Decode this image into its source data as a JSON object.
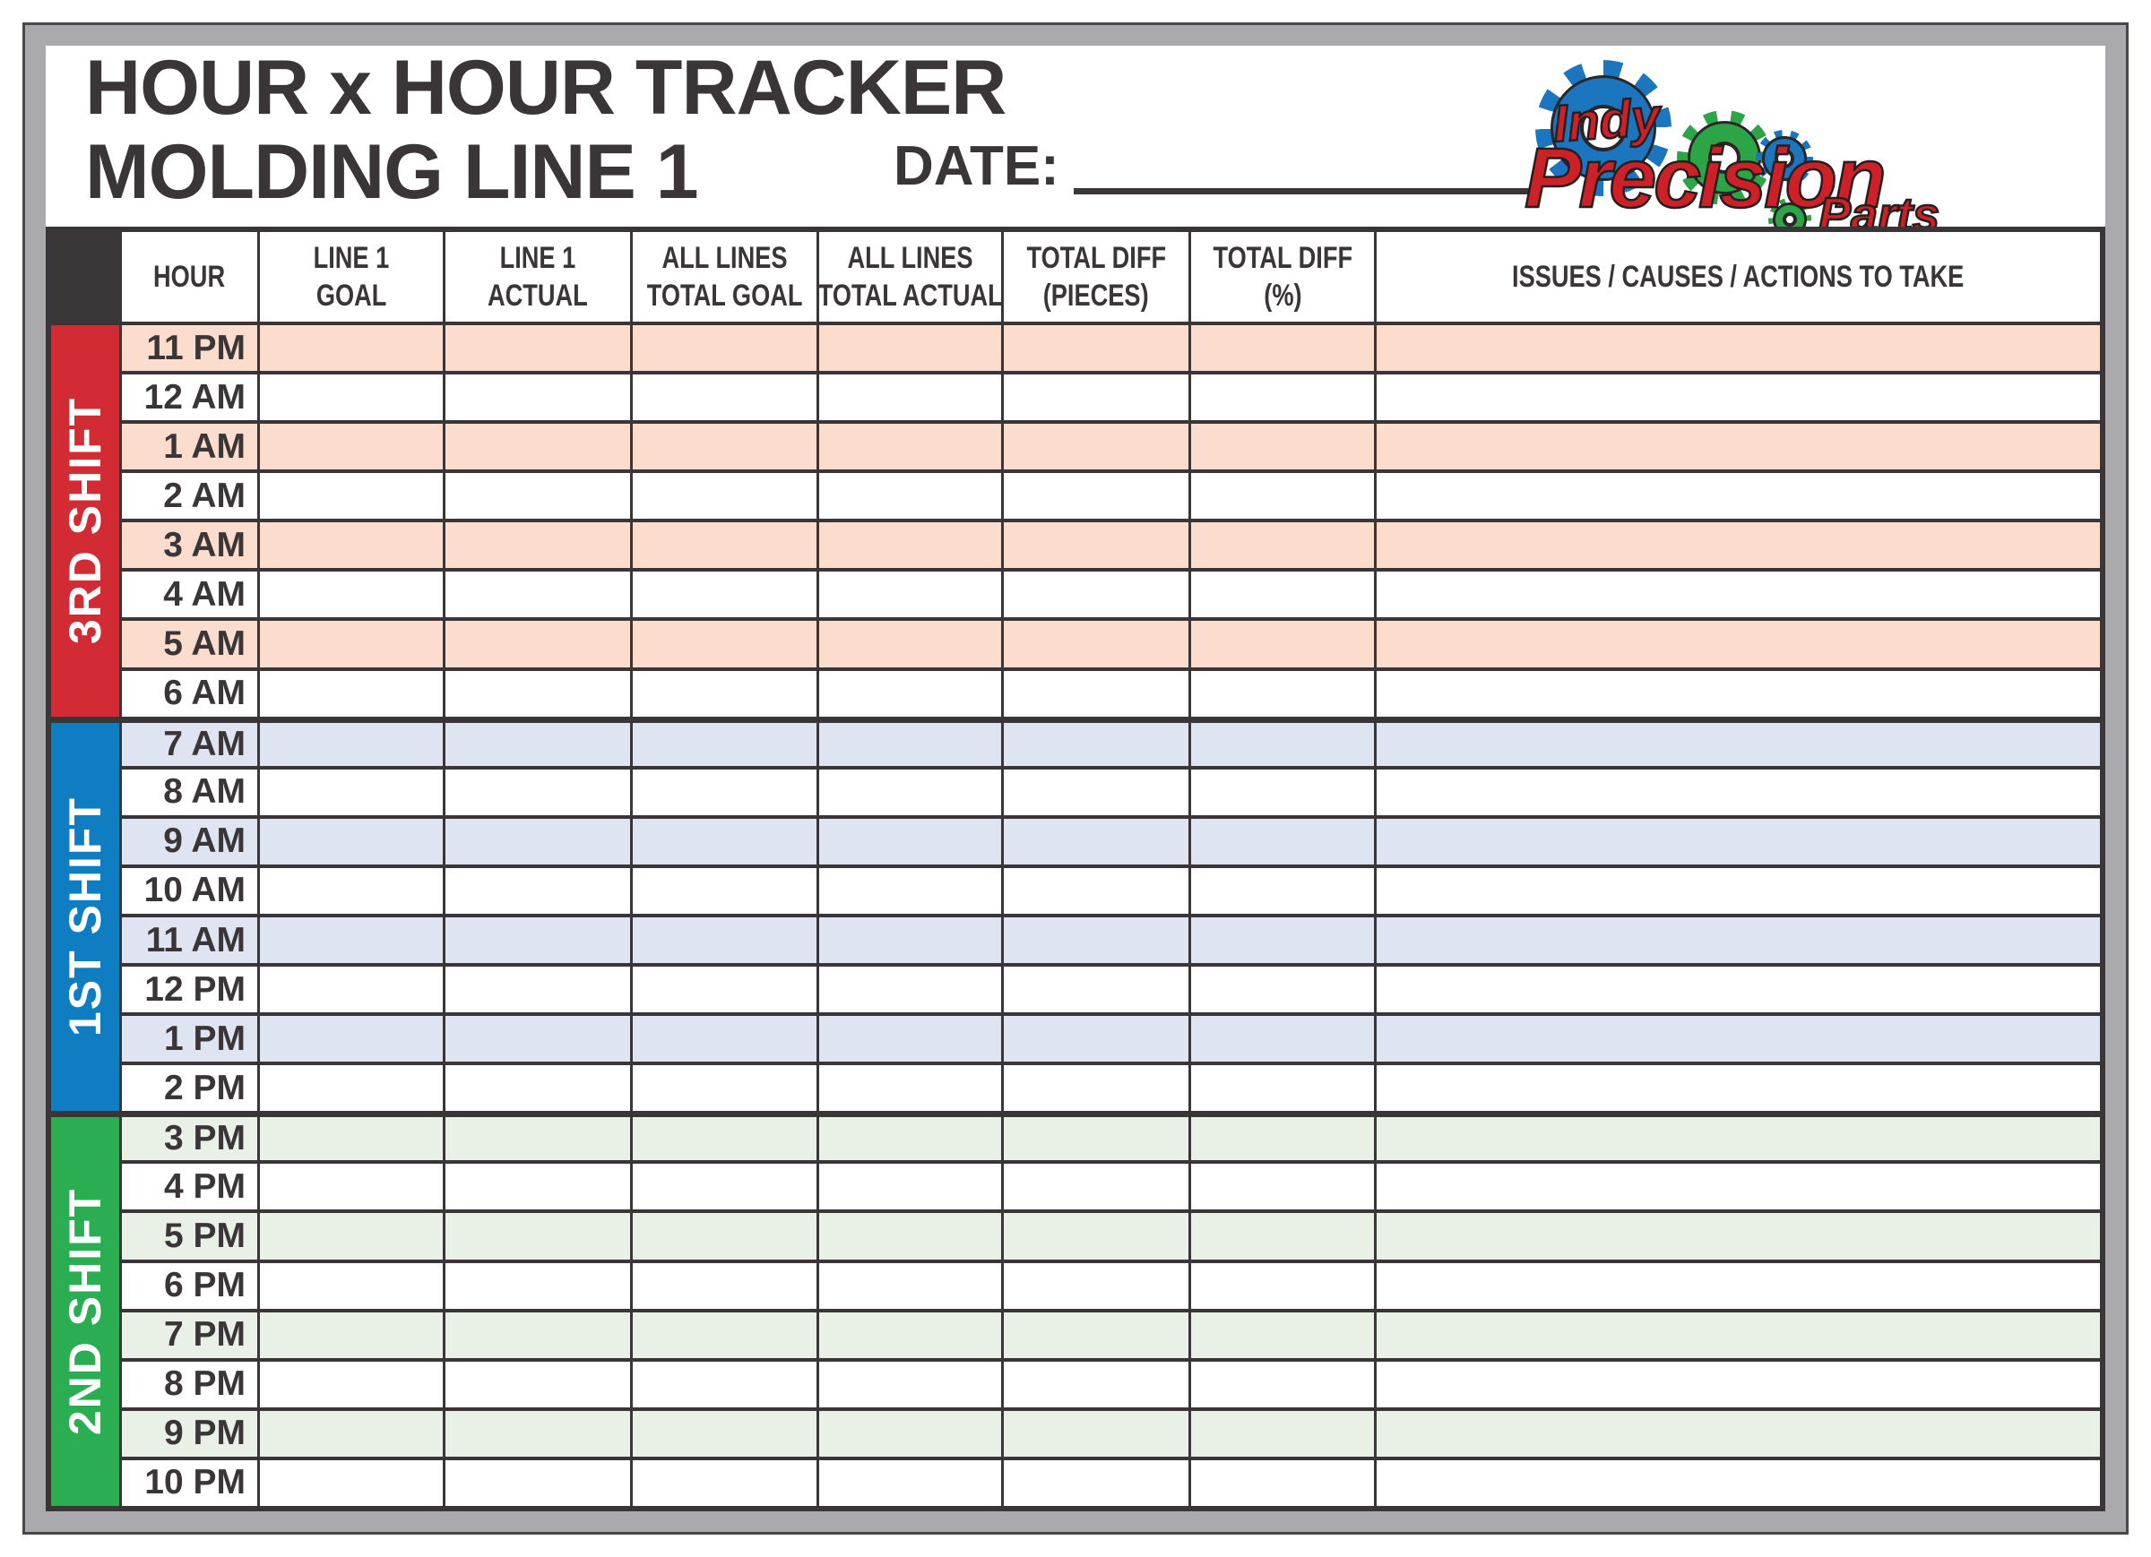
{
  "header": {
    "title_line1": "HOUR x HOUR TRACKER",
    "title_line2": "MOLDING LINE 1",
    "date_label": "DATE:",
    "date_value": ""
  },
  "logo": {
    "word1": "Indy",
    "word2": "Precision",
    "word3": "Parts",
    "red": "#cd2127",
    "blue": "#1b76bf",
    "green": "#2ca547"
  },
  "table": {
    "columns": [
      {
        "key": "hour",
        "line1": "HOUR",
        "line2": ""
      },
      {
        "key": "line1-goal",
        "line1": "LINE 1",
        "line2": "GOAL"
      },
      {
        "key": "line1-actual",
        "line1": "LINE 1",
        "line2": "ACTUAL"
      },
      {
        "key": "all-lines-total-goal",
        "line1": "ALL LINES",
        "line2": "TOTAL GOAL"
      },
      {
        "key": "all-lines-total-actual",
        "line1": "ALL LINES",
        "line2": "TOTAL ACTUAL"
      },
      {
        "key": "total-diff-pieces",
        "line1": "TOTAL DIFF",
        "line2": "(PIECES)"
      },
      {
        "key": "total-diff-pct",
        "line1": "TOTAL DIFF",
        "line2": "(%)"
      },
      {
        "key": "issues",
        "line1": "ISSUES / CAUSES / ACTIONS TO TAKE",
        "line2": ""
      }
    ],
    "shifts": [
      {
        "name": "3RD SHIFT",
        "color": "#d22b33",
        "tint": "#fbdccd",
        "hours": [
          "11 PM",
          "12 AM",
          "1 AM",
          "2 AM",
          "3 AM",
          "4 AM",
          "5 AM",
          "6 AM"
        ]
      },
      {
        "name": "1ST SHIFT",
        "color": "#0f7dc2",
        "tint": "#dee4f1",
        "hours": [
          "7 AM",
          "8 AM",
          "9 AM",
          "10 AM",
          "11 AM",
          "12 PM",
          "1 PM",
          "2 PM"
        ]
      },
      {
        "name": "2ND SHIFT",
        "color": "#2bae52",
        "tint": "#e9f0e5",
        "hours": [
          "3 PM",
          "4 PM",
          "5 PM",
          "6 PM",
          "7 PM",
          "8 PM",
          "9 PM",
          "10 PM"
        ]
      }
    ],
    "cell_values": ""
  },
  "colors": {
    "grid_dark": "#3a3536",
    "frame_gray": "#a9a9ae",
    "frame_outline": "#4b4848",
    "board_white": "#ffffff"
  }
}
